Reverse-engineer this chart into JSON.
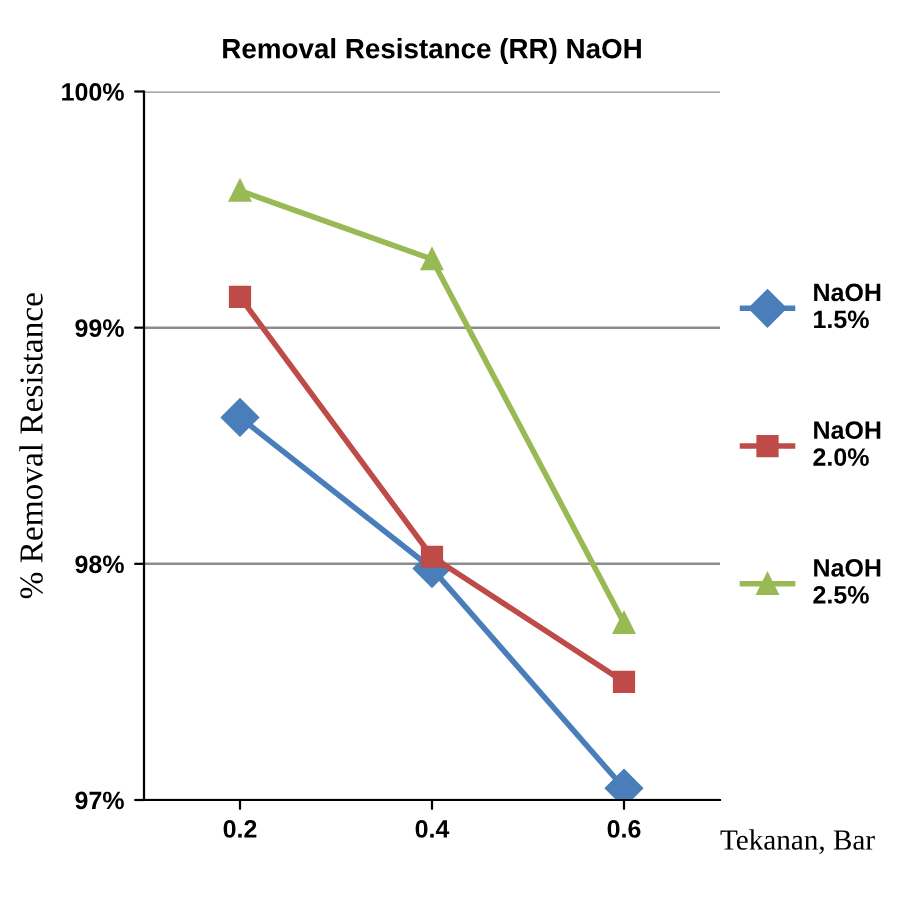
{
  "chart_data": {
    "type": "line",
    "title": "Removal Resistance (RR) NaOH",
    "xlabel": "Tekanan, Bar",
    "ylabel": "% Removal Resistance",
    "categories": [
      "0.2",
      "0.4",
      "0.6"
    ],
    "series": [
      {
        "name": "NaOH\n1.5%",
        "color": "#4a7ebb",
        "marker": "diamond",
        "values": [
          98.62,
          97.98,
          97.05
        ]
      },
      {
        "name": "NaOH\n2.0%",
        "color": "#be4b48",
        "marker": "square",
        "values": [
          99.13,
          98.03,
          97.5
        ]
      },
      {
        "name": "NaOH\n2.5%",
        "color": "#98b954",
        "marker": "triangle",
        "values": [
          99.58,
          99.29,
          97.75
        ]
      }
    ],
    "ylim": [
      97,
      100
    ],
    "yticks": [
      {
        "value": 97,
        "label": "97%"
      },
      {
        "value": 98,
        "label": "98%"
      },
      {
        "value": 99,
        "label": "99%"
      },
      {
        "value": 100,
        "label": "100%"
      }
    ],
    "grid": "y",
    "legend": "right"
  }
}
